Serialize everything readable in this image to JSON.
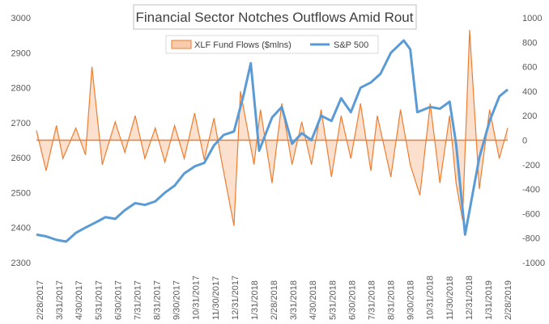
{
  "chart_data": {
    "type": "line",
    "title": "Financial Sector Notches Outflows Amid Rout",
    "legend": {
      "placement": "top-center",
      "entries": [
        "XLF Fund Flows ($mlns)",
        "S&P 500"
      ]
    },
    "grid": false,
    "colors": {
      "flows": "#ED7D31",
      "flows_fill": "#F8CBAD",
      "sp500": "#5B9BD5",
      "zero_line": "#ED7D31"
    },
    "x_tick_labels": [
      "2/28/2017",
      "3/31/2017",
      "4/30/2017",
      "5/31/2017",
      "6/30/2017",
      "7/31/2017",
      "8/31/2017",
      "9/30/2017",
      "10/31/2017",
      "11/30/2017",
      "12/31/2017",
      "1/31/2018",
      "2/28/2018",
      "3/31/2018",
      "4/30/2018",
      "5/31/2018",
      "6/30/2018",
      "7/31/2018",
      "8/31/2018",
      "9/30/2018",
      "10/31/2018",
      "11/30/2018",
      "12/31/2018",
      "1/31/2019",
      "2/28/2019"
    ],
    "left_axis": {
      "ylim": [
        2300,
        3000
      ],
      "ticks": [
        2300,
        2400,
        2500,
        2600,
        2700,
        2800,
        2900,
        3000
      ]
    },
    "right_axis": {
      "ylim": [
        -1000,
        1000
      ],
      "ticks": [
        -1000,
        -800,
        -600,
        -400,
        -200,
        0,
        200,
        400,
        600,
        800,
        1000
      ]
    },
    "series": [
      {
        "name": "S&P 500",
        "axis": "left",
        "x": [
          "2017-02-28",
          "2017-03-15",
          "2017-03-31",
          "2017-04-15",
          "2017-04-30",
          "2017-05-15",
          "2017-05-31",
          "2017-06-15",
          "2017-06-30",
          "2017-07-15",
          "2017-07-31",
          "2017-08-15",
          "2017-08-31",
          "2017-09-15",
          "2017-09-30",
          "2017-10-15",
          "2017-10-31",
          "2017-11-15",
          "2017-11-30",
          "2017-12-15",
          "2017-12-31",
          "2018-01-15",
          "2018-01-26",
          "2018-02-08",
          "2018-02-28",
          "2018-03-15",
          "2018-03-31",
          "2018-04-15",
          "2018-04-30",
          "2018-05-15",
          "2018-05-31",
          "2018-06-15",
          "2018-06-30",
          "2018-07-15",
          "2018-07-31",
          "2018-08-15",
          "2018-08-31",
          "2018-09-20",
          "2018-09-30",
          "2018-10-11",
          "2018-10-31",
          "2018-11-15",
          "2018-11-30",
          "2018-12-10",
          "2018-12-24",
          "2019-01-15",
          "2019-01-31",
          "2019-02-15",
          "2019-02-28"
        ],
        "values": [
          2380,
          2375,
          2365,
          2360,
          2385,
          2400,
          2415,
          2430,
          2425,
          2450,
          2470,
          2465,
          2475,
          2500,
          2520,
          2555,
          2575,
          2585,
          2635,
          2665,
          2675,
          2780,
          2870,
          2620,
          2715,
          2745,
          2640,
          2670,
          2650,
          2720,
          2705,
          2770,
          2730,
          2800,
          2815,
          2840,
          2900,
          2935,
          2910,
          2730,
          2745,
          2740,
          2760,
          2640,
          2380,
          2600,
          2705,
          2775,
          2795
        ]
      },
      {
        "name": "XLF Fund Flows ($mlns)",
        "axis": "right",
        "x": [
          "2017-02-28",
          "2017-03-15",
          "2017-03-31",
          "2017-04-10",
          "2017-04-30",
          "2017-05-15",
          "2017-05-25",
          "2017-06-10",
          "2017-06-30",
          "2017-07-15",
          "2017-07-31",
          "2017-08-15",
          "2017-08-31",
          "2017-09-15",
          "2017-09-30",
          "2017-10-15",
          "2017-10-31",
          "2017-11-15",
          "2017-11-30",
          "2017-12-10",
          "2017-12-31",
          "2018-01-10",
          "2018-01-31",
          "2018-02-10",
          "2018-02-28",
          "2018-03-15",
          "2018-03-31",
          "2018-04-15",
          "2018-04-30",
          "2018-05-15",
          "2018-05-31",
          "2018-06-15",
          "2018-06-30",
          "2018-07-15",
          "2018-07-31",
          "2018-08-10",
          "2018-08-31",
          "2018-09-15",
          "2018-09-30",
          "2018-10-15",
          "2018-10-31",
          "2018-11-15",
          "2018-11-30",
          "2018-12-10",
          "2018-12-20",
          "2018-12-31",
          "2019-01-15",
          "2019-01-31",
          "2019-02-15",
          "2019-02-28"
        ],
        "values": [
          80,
          -250,
          120,
          -150,
          100,
          -120,
          600,
          -200,
          150,
          -100,
          200,
          -150,
          100,
          -180,
          120,
          -150,
          220,
          -160,
          180,
          -120,
          -700,
          400,
          -200,
          250,
          -350,
          300,
          -200,
          150,
          -200,
          250,
          -300,
          200,
          -150,
          300,
          -250,
          200,
          -300,
          250,
          -200,
          -450,
          300,
          -350,
          200,
          -350,
          -650,
          900,
          -400,
          250,
          -150,
          100
        ]
      }
    ]
  }
}
